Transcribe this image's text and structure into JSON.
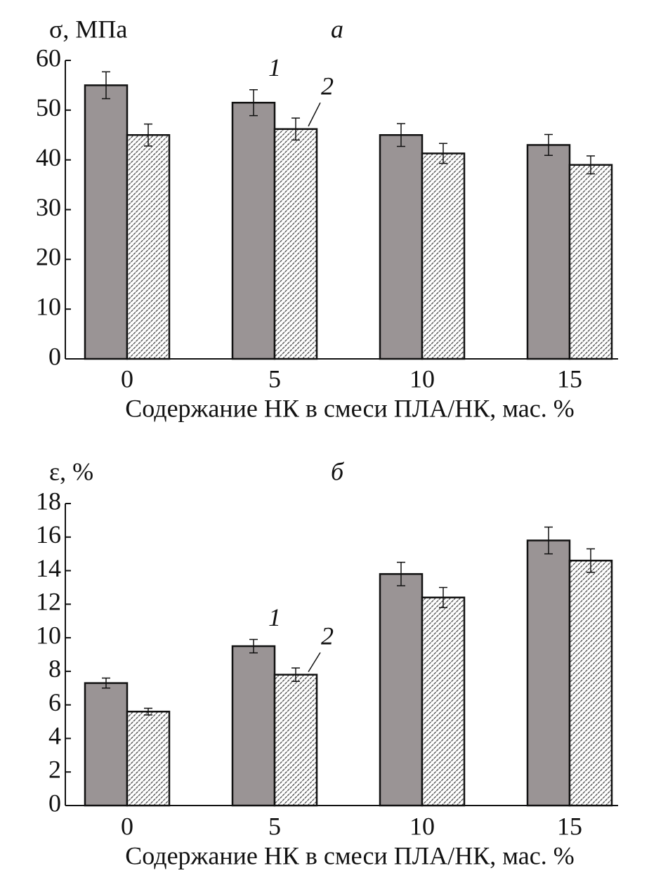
{
  "chart_data": [
    {
      "type": "bar",
      "panel": "а",
      "ylabel": "σ, МПа",
      "xlabel": "Содержание НК в смеси ПЛА/НК, мас. %",
      "categories": [
        "0",
        "5",
        "10",
        "15"
      ],
      "series": [
        {
          "name": "1",
          "color": "#9a9495",
          "values": [
            55,
            51.5,
            45,
            43
          ],
          "errors": [
            2.7,
            2.6,
            2.3,
            2.1
          ]
        },
        {
          "name": "2",
          "color": "#444444",
          "values": [
            45,
            46.2,
            41.3,
            39
          ],
          "errors": [
            2.2,
            2.2,
            2.0,
            1.8
          ]
        }
      ],
      "ylim": [
        0,
        60
      ],
      "yticks": [
        0,
        10,
        20,
        30,
        40,
        50,
        60
      ]
    },
    {
      "type": "bar",
      "panel": "б",
      "ylabel": "ε, %",
      "xlabel": "Содержание НК в смеси ПЛА/НК, мас. %",
      "categories": [
        "0",
        "5",
        "10",
        "15"
      ],
      "series": [
        {
          "name": "1",
          "color": "#9a9495",
          "values": [
            7.3,
            9.5,
            13.8,
            15.8
          ],
          "errors": [
            0.3,
            0.4,
            0.7,
            0.8
          ]
        },
        {
          "name": "2",
          "color": "#444444",
          "values": [
            5.6,
            7.8,
            12.4,
            14.6
          ],
          "errors": [
            0.2,
            0.4,
            0.6,
            0.7
          ]
        }
      ],
      "ylim": [
        0,
        18
      ],
      "yticks": [
        0,
        2,
        4,
        6,
        8,
        10,
        12,
        14,
        16,
        18
      ]
    }
  ]
}
